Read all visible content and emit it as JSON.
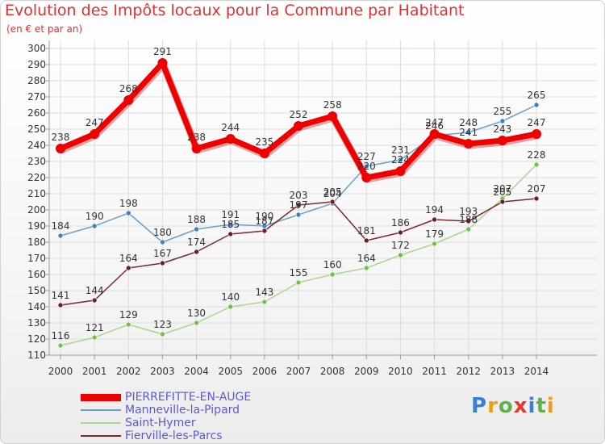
{
  "header": {
    "title": "Evolution des Impôts locaux pour la Commune par Habitant",
    "subtitle": "(en € et par an)"
  },
  "logo": {
    "text": "Proxiti",
    "letter_colors": [
      "#3a7fd6",
      "#e8a01e",
      "#5cb34a",
      "#e23a2e",
      "#3a7fd6",
      "#5cb34a",
      "#e8a01e"
    ]
  },
  "chart_data": {
    "type": "line",
    "x": [
      "2000",
      "2001",
      "2002",
      "2003",
      "2004",
      "2005",
      "2006",
      "2007",
      "2008",
      "2009",
      "2010",
      "2011",
      "2012",
      "2013",
      "2014"
    ],
    "ylim": [
      110,
      300
    ],
    "yticks": [
      110,
      120,
      130,
      140,
      150,
      160,
      170,
      180,
      190,
      200,
      210,
      220,
      230,
      240,
      250,
      260,
      270,
      280,
      290,
      300
    ],
    "grid": true,
    "legend_position": "bottom-left",
    "series": [
      {
        "name": "PIERREFITTE-EN-AUGE",
        "color": "#ee0000",
        "emphasis": true,
        "values": [
          238,
          247,
          268,
          291,
          238,
          244,
          235,
          252,
          258,
          220,
          224,
          247,
          241,
          243,
          247
        ],
        "labels": [
          "238",
          "247",
          "268",
          "291",
          "238",
          "244",
          "235",
          "252",
          "258",
          "220",
          "224",
          "247",
          "241",
          "243",
          "247"
        ]
      },
      {
        "name": "Manneville-la-Pipard",
        "color": "#6a9fd0",
        "marker": "#3b7fc4",
        "values": [
          184,
          190,
          198,
          180,
          188,
          191,
          190,
          197,
          204,
          227,
          231,
          246,
          248,
          255,
          265
        ],
        "labels": [
          "184",
          "190",
          "198",
          "180",
          "188",
          "191",
          "190",
          "197",
          "204",
          "227",
          "231",
          "246",
          "248",
          "255",
          "265"
        ]
      },
      {
        "name": "Saint-Hymer",
        "color": "#a8d888",
        "marker": "#72c04a",
        "values": [
          116,
          121,
          129,
          123,
          130,
          140,
          143,
          155,
          160,
          164,
          172,
          179,
          188,
          207,
          228
        ],
        "labels": [
          "116",
          "121",
          "129",
          "123",
          "130",
          "140",
          "143",
          "155",
          "160",
          "164",
          "172",
          "179",
          "188",
          "207",
          "228"
        ]
      },
      {
        "name": "Fierville-les-Parcs",
        "color": "#7a2a2a",
        "marker": "#6a1f24",
        "values": [
          141,
          144,
          164,
          167,
          174,
          185,
          187,
          203,
          205,
          181,
          186,
          194,
          193,
          205,
          207
        ],
        "labels": [
          "141",
          "144",
          "164",
          "167",
          "174",
          "185",
          "187",
          "203",
          "205",
          "181",
          "186",
          "194",
          "193",
          "205",
          "207"
        ]
      }
    ]
  }
}
